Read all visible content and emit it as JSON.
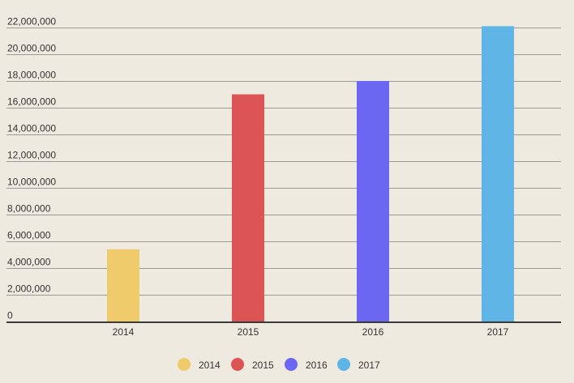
{
  "chart_data": {
    "type": "bar",
    "title": "",
    "xlabel": "",
    "ylabel": "",
    "categories": [
      "2014",
      "2015",
      "2016",
      "2017"
    ],
    "values": [
      5400000,
      17000000,
      18000000,
      22100000
    ],
    "colors": [
      "#f0cb6c",
      "#dd5454",
      "#6b67f2",
      "#5eb5e6"
    ],
    "ylim": [
      0,
      22000000
    ],
    "y_ticks": [
      0,
      2000000,
      4000000,
      6000000,
      8000000,
      10000000,
      12000000,
      14000000,
      16000000,
      18000000,
      20000000,
      22000000
    ],
    "y_tick_labels": [
      "0",
      "2,000,000",
      "4,000,000",
      "6,000,000",
      "8,000,000",
      "10,000,000",
      "12,000,000",
      "14,000,000",
      "16,000,000",
      "18,000,000",
      "20,000,000",
      "22,000,000"
    ],
    "grid": true,
    "legend": {
      "position": "bottom",
      "entries": [
        "2014",
        "2015",
        "2016",
        "2017"
      ]
    }
  },
  "style": {
    "background": "#efeae0",
    "grid_color": "#9b9a96",
    "axis_color": "#3a3a3a",
    "text_color": "#333333"
  }
}
